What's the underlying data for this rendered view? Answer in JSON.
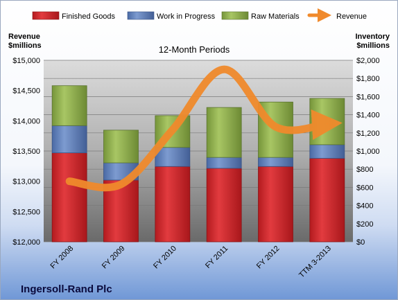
{
  "chart_data": {
    "type": "bar",
    "stacked": true,
    "subtitle": "12-Month Periods",
    "company": "Ingersoll-Rand Plc",
    "y_left_title": [
      "Revenue",
      "$millions"
    ],
    "y_right_title": [
      "Inventory",
      "$millions"
    ],
    "y_left_ticks": [
      "$12,000",
      "$12,500",
      "$13,000",
      "$13,500",
      "$14,000",
      "$14,500",
      "$15,000"
    ],
    "y_right_ticks": [
      "$0",
      "$200",
      "$400",
      "$600",
      "$800",
      "$1,000",
      "$1,200",
      "$1,400",
      "$1,600",
      "$1,800",
      "$2,000"
    ],
    "y_left_range": [
      12000,
      15000
    ],
    "y_right_range": [
      0,
      2000
    ],
    "categories": [
      "FY 2008",
      "FY 2009",
      "FY 2010",
      "FY 2011",
      "FY 2012",
      "TTM 3-2013"
    ],
    "series": [
      {
        "name": "Finished Goods",
        "axis": "right",
        "color": "#d9262b",
        "values": [
          980,
          680,
          830,
          810,
          830,
          920
        ]
      },
      {
        "name": "Work in Progress",
        "axis": "right",
        "color": "#5b7fbe",
        "values": [
          300,
          190,
          210,
          120,
          100,
          150
        ]
      },
      {
        "name": "Raw Materials",
        "axis": "right",
        "color": "#8fb04a",
        "values": [
          440,
          360,
          350,
          550,
          610,
          510
        ]
      },
      {
        "name": "Revenue",
        "type": "line",
        "axis": "left",
        "color": "#f08a2c",
        "values": [
          13000,
          12950,
          13850,
          14850,
          13900,
          13950
        ]
      }
    ],
    "grid": true,
    "legend_position": "top"
  }
}
